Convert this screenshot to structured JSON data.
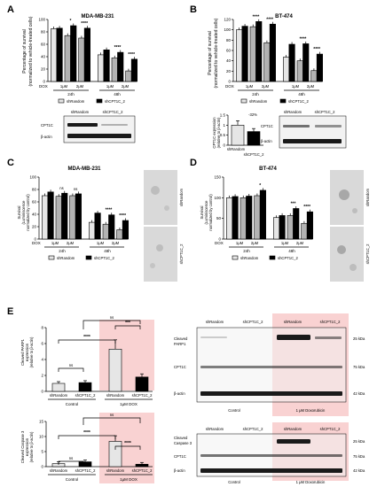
{
  "panel_labels": [
    "A",
    "B",
    "C",
    "D",
    "E"
  ],
  "legend": {
    "random": "shRandom",
    "cpt": "shCPT1C_2"
  },
  "common": {
    "dox": "DOX",
    "h24": "24h",
    "h48": "48h",
    "c1": "1μM",
    "c2": "2μM",
    "beta_actin": "β-actin",
    "cpt1c": "CPT1C"
  },
  "panelA": {
    "title": "MDA-MB-231",
    "ylabel": [
      "Percentage of survival",
      "(normalized to vehicle-treated cells)"
    ]
  },
  "panelB": {
    "title": "BT-474",
    "ylabel": [
      "Percentage of survival",
      "(normalized to vehicle-treated cells)"
    ],
    "expr_ylabel": [
      "CPT1C expression",
      "(relative to β-actin)"
    ],
    "expr_note": "-32%"
  },
  "panelC": {
    "title": "MDA-MB-231",
    "ylabel": [
      "Survival",
      "(Luminiscence",
      "normalized by control)"
    ]
  },
  "panelD": {
    "title": "BT-474",
    "ylabel": [
      "Survival",
      "(Luminiscence",
      "normalized by control)"
    ]
  },
  "panelE": {
    "parp_ylabel": [
      "Cleaved PARP1",
      "expression",
      "(relative to β-actin)"
    ],
    "casp_ylabel": [
      "Cleaved Caspase 3",
      "expression",
      "(relative to β-actin)"
    ],
    "control": "Control",
    "dox1": "1μM DOX",
    "dox_long": "1 μM Doxorubicin",
    "cleaved_parp": [
      "Cleaved",
      "PARP1"
    ],
    "cleaved_casp": [
      "Cleaved",
      "Caspase 3"
    ],
    "kda25": "25 kDa",
    "kda75": "75 kDa",
    "kda42": "42 kDa",
    "sig": [
      "****",
      "***",
      "ns",
      "ns",
      "****",
      "****",
      "ns",
      "ns"
    ]
  },
  "chart_data": [
    {
      "type": "bar",
      "panel": "A",
      "title": "MDA-MB-231",
      "ylim": [
        0,
        100
      ],
      "yticks": [
        0,
        20,
        40,
        60,
        80,
        100
      ],
      "categories": [
        "24h 0",
        "24h 1μM",
        "24h 2μM",
        "48h 0",
        "48h 1μM",
        "48h 2μM"
      ],
      "series": [
        {
          "name": "shRandom",
          "values": [
            85,
            74,
            70,
            43,
            38,
            17
          ]
        },
        {
          "name": "shCPT1C_2",
          "values": [
            86,
            90,
            86,
            51,
            47,
            36
          ]
        }
      ],
      "significance": [
        "",
        "*",
        "****",
        "",
        "****",
        "****"
      ]
    },
    {
      "type": "bar",
      "panel": "B",
      "title": "BT-474",
      "ylim": [
        0,
        120
      ],
      "yticks": [
        0,
        20,
        40,
        60,
        80,
        100,
        120
      ],
      "categories": [
        "24h 0",
        "24h 1μM",
        "24h 2μM",
        "48h 0",
        "48h 1μM",
        "48h 2μM"
      ],
      "series": [
        {
          "name": "shRandom",
          "values": [
            100,
            106,
            75,
            47,
            40,
            21
          ]
        },
        {
          "name": "shCPT1C_2",
          "values": [
            107,
            116,
            111,
            72,
            73,
            53
          ]
        }
      ],
      "significance": [
        "",
        "****",
        "****",
        "",
        "****",
        "****"
      ]
    },
    {
      "type": "bar",
      "panel": "B-expression",
      "ylim": [
        0,
        1.5
      ],
      "yticks": [
        0.0,
        0.5,
        1.0,
        1.5
      ],
      "categories": [
        "shRandom",
        "shCPT1C_2"
      ],
      "values": [
        1.0,
        0.68
      ]
    },
    {
      "type": "bar",
      "panel": "C",
      "title": "MDA-MB-231",
      "ylim": [
        0,
        100
      ],
      "yticks": [
        0,
        20,
        40,
        60,
        80,
        100
      ],
      "categories": [
        "24h 0",
        "24h 1μM",
        "24h 2μM",
        "48h 0",
        "48h 1μM",
        "48h 2μM"
      ],
      "series": [
        {
          "name": "shRandom",
          "values": [
            70,
            69,
            70,
            27,
            24,
            15
          ]
        },
        {
          "name": "shCPT1C_2",
          "values": [
            76,
            74,
            73,
            42,
            39,
            30
          ]
        }
      ],
      "significance": [
        "",
        "ns",
        "ns",
        "",
        "****",
        "****"
      ]
    },
    {
      "type": "bar",
      "panel": "D",
      "title": "BT-474",
      "ylim": [
        0,
        150
      ],
      "yticks": [
        0,
        50,
        100,
        150
      ],
      "categories": [
        "24h 0",
        "24h 1μM",
        "24h 2μM",
        "48h 0",
        "48h 1μM",
        "48h 2μM"
      ],
      "series": [
        {
          "name": "shRandom",
          "values": [
            100,
            100,
            105,
            52,
            57,
            38
          ]
        },
        {
          "name": "shCPT1C_2",
          "values": [
            103,
            104,
            118,
            57,
            74,
            66
          ]
        }
      ],
      "significance": [
        "",
        "",
        "*",
        "",
        "***",
        "****"
      ]
    },
    {
      "type": "bar",
      "panel": "E-PARP1",
      "ylim": [
        0,
        8
      ],
      "yticks": [
        0,
        2,
        4,
        6,
        8
      ],
      "categories": [
        "shRandom Control",
        "shCPT1C_2 Control",
        "shRandom 1μM DOX",
        "shCPT1C_2 1μM DOX"
      ],
      "values": [
        1.0,
        1.1,
        5.3,
        1.8
      ]
    },
    {
      "type": "bar",
      "panel": "E-Caspase3",
      "ylim": [
        0,
        15
      ],
      "yticks": [
        0,
        5,
        10,
        15
      ],
      "categories": [
        "shRandom Control",
        "shCPT1C_2 Control",
        "shRandom 1μM DOX",
        "shCPT1C_2 1μM DOX"
      ],
      "values": [
        1.0,
        1.6,
        8.4,
        0.8
      ]
    }
  ]
}
